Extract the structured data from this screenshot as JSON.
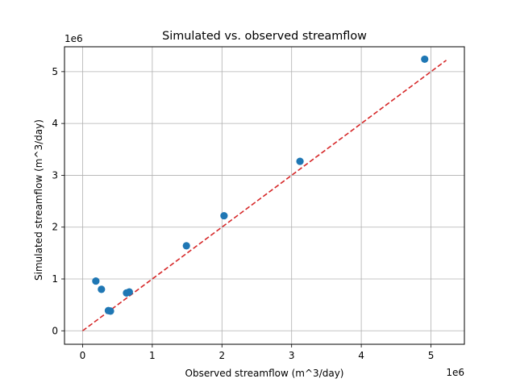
{
  "chart_data": {
    "type": "scatter",
    "title": "Simulated vs. observed streamflow",
    "xlabel": "Observed streamflow (m^3/day)",
    "ylabel": "Simulated streamflow (m^3/day)",
    "x_offset_label": "1e6",
    "y_offset_label": "1e6",
    "xlim": [
      -260000,
      5480000
    ],
    "ylim": [
      -260000,
      5480000
    ],
    "x_ticks": [
      0,
      1000000,
      2000000,
      3000000,
      4000000,
      5000000
    ],
    "x_tick_labels": [
      "0",
      "1",
      "2",
      "3",
      "4",
      "5"
    ],
    "y_ticks": [
      0,
      1000000,
      2000000,
      3000000,
      4000000,
      5000000
    ],
    "y_tick_labels": [
      "0",
      "1",
      "2",
      "3",
      "4",
      "5"
    ],
    "grid": true,
    "points": [
      {
        "x": 190000,
        "y": 960000
      },
      {
        "x": 270000,
        "y": 800000
      },
      {
        "x": 370000,
        "y": 390000
      },
      {
        "x": 400000,
        "y": 380000
      },
      {
        "x": 630000,
        "y": 730000
      },
      {
        "x": 670000,
        "y": 750000
      },
      {
        "x": 1490000,
        "y": 1640000
      },
      {
        "x": 2030000,
        "y": 2220000
      },
      {
        "x": 3120000,
        "y": 3270000
      },
      {
        "x": 4910000,
        "y": 5240000
      }
    ],
    "reference_line": {
      "x": [
        0,
        5220000
      ],
      "y": [
        0,
        5220000
      ],
      "style": "dashed"
    },
    "colors": {
      "points": "#1f77b4",
      "reference_line": "#d62728",
      "grid": "#b0b0b0"
    }
  }
}
